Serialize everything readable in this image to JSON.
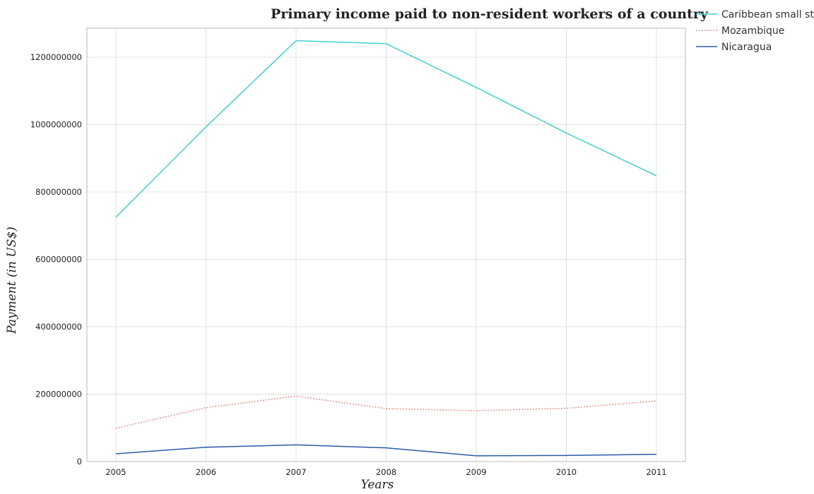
{
  "chart_data": {
    "type": "line",
    "title": "Primary income paid to non-resident workers of a country",
    "xlabel": "Years",
    "ylabel": "Payment (in US$)",
    "categories": [
      "2005",
      "2006",
      "2007",
      "2008",
      "2009",
      "2010",
      "2011"
    ],
    "ylim": [
      0,
      1300000000
    ],
    "yticks": [
      0,
      200000000,
      400000000,
      600000000,
      800000000,
      1000000000,
      1200000000
    ],
    "ytick_labels": [
      "0",
      "200000000",
      "400000000",
      "600000000",
      "800000000",
      "1000000000",
      "1200000000"
    ],
    "grid": true,
    "legend_position": "top-right",
    "series": [
      {
        "name": "Caribbean small states",
        "color": "#40d0d0",
        "dash": "solid",
        "values": [
          725000000,
          993000000,
          1249000000,
          1240000000,
          1110000000,
          975000000,
          848000000
        ]
      },
      {
        "name": "Mozambique",
        "color": "#e07a6a",
        "dash": "dotted",
        "values": [
          99000000,
          160000000,
          194000000,
          157000000,
          151000000,
          158000000,
          180000000
        ]
      },
      {
        "name": "Nicaragua",
        "color": "#2a5aa8",
        "dash": "solid",
        "values": [
          23000000,
          42500000,
          49500000,
          40500000,
          17000000,
          18000000,
          21500000
        ]
      }
    ]
  }
}
